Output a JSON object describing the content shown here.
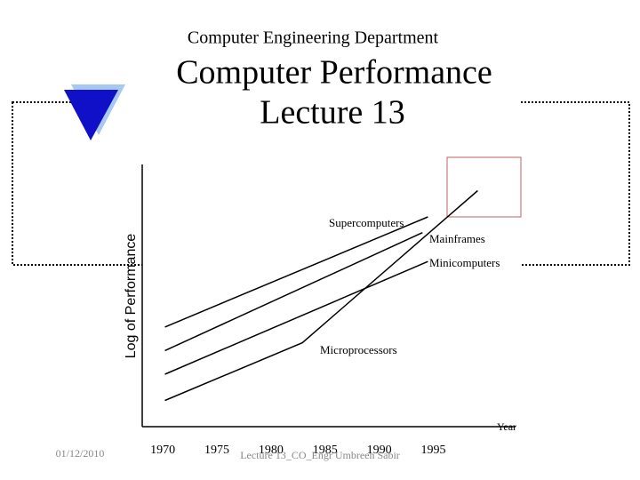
{
  "header": {
    "department": "Computer Engineering Department",
    "title": "Computer Performance",
    "subtitle": "Lecture 13"
  },
  "footer": {
    "date": "01/12/2010",
    "note": "Lecture 13_CO_Engr Umbreen Sabir"
  },
  "chart_data": {
    "type": "line",
    "x_label": "Year",
    "y_label": "Log of Performance",
    "xlim": [
      1968.1,
      2002.6
    ],
    "xticks": [
      1970,
      1975,
      1980,
      1985,
      1990,
      1995
    ],
    "ylim": [
      0,
      100
    ],
    "series": [
      {
        "name": "Supercomputers",
        "color": "#000000",
        "x": [
          1970.2,
          1994.5
        ],
        "values": [
          38,
          80
        ]
      },
      {
        "name": "Mainframes",
        "color": "#000000",
        "x": [
          1970.2,
          1994.0
        ],
        "values": [
          29,
          74
        ]
      },
      {
        "name": "Minicomputers",
        "color": "#000000",
        "x": [
          1970.2,
          1994.5
        ],
        "values": [
          20,
          63
        ]
      },
      {
        "name": "Microprocessors",
        "color": "#000000",
        "x": [
          1970.2,
          1982.9,
          1999.1
        ],
        "values": [
          10,
          32,
          90
        ]
      }
    ]
  }
}
